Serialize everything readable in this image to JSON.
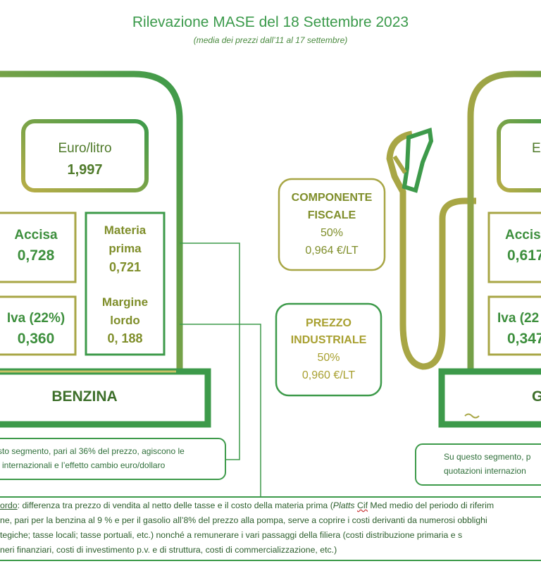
{
  "header": {
    "title": "Rilevazione MASE del 18 Settembre 2023",
    "subtitle": "(media dei prezzi dall’11 al 17 settembre)"
  },
  "benzina": {
    "price_label": "Euro/litro",
    "price_value": "1,997",
    "accisa_label": "Accisa",
    "accisa_value": "0,728",
    "iva_label": "Iva (22%)",
    "iva_value": "0,360",
    "materia_label_1": "Materia",
    "materia_label_2": "prima",
    "materia_value": "0,721",
    "margine_label_1": "Margine",
    "margine_label_2": "lordo",
    "margine_value": "0, 188",
    "base_label": "BENZINA",
    "note_line_1": "sto segmento, pari al 36% del prezzo, agiscono le",
    "note_line_2": "i internazionali e l’effetto cambio euro/dollaro"
  },
  "center": {
    "fiscale_line_1": "COMPONENTE",
    "fiscale_line_2": "FISCALE",
    "fiscale_pct": "50%",
    "fiscale_value": "0,964 €/LT",
    "industriale_line_1": "PREZZO",
    "industriale_line_2": "INDUSTRIALE",
    "industriale_pct": "50%",
    "industriale_value": "0,960 €/LT"
  },
  "gasolio": {
    "price_label_partial": "E",
    "accisa_label_partial": "Accisa",
    "accisa_value_partial": "0,617",
    "iva_label_partial": "Iva (22",
    "iva_value_partial": "0,347",
    "base_label_partial": "G",
    "note_line_1": "Su questo segmento, p",
    "note_line_2": "quotazioni internazion"
  },
  "footer": {
    "line_1_term": "ordo",
    "line_1_rest": ": differenza tra prezzo di vendita al netto delle tasse e il costo della materia prima (",
    "line_1_italic": "Platts",
    "line_1_underlined": "Cif",
    "line_1_tail": " Med medio del periodo di riferim",
    "line_2": "ne, pari per la benzina al 9 % e per il gasolio all’8% del prezzo alla pompa, serve a coprire i costi derivanti da numerosi obblighi",
    "line_3": "tegiche; tasse locali; tasse portuali, etc.) nonché a remunerare i vari passaggi della filiera (costi distribuzione primaria e s",
    "line_4": "neri finanziari, costi di investimento p.v. e di struttura, costi di commercializzazione, etc.)"
  },
  "colors": {
    "green": "#3d9a4a",
    "olive": "#a3a641",
    "text_green": "#3d8f3d",
    "text_olive": "#7f8e2a"
  }
}
